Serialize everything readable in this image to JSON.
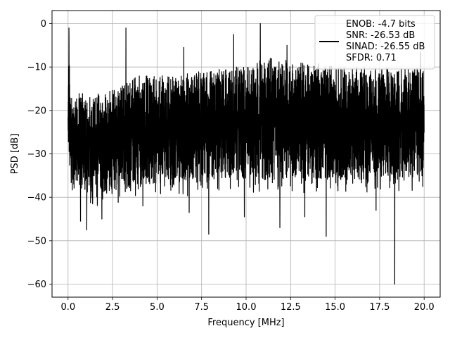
{
  "chart_data": {
    "type": "line",
    "xlabel": "Frequency [MHz]",
    "ylabel": "PSD [dB]",
    "xlim": [
      -0.9,
      20.9
    ],
    "ylim": [
      -63,
      3
    ],
    "xticks": [
      0.0,
      2.5,
      5.0,
      7.5,
      10.0,
      12.5,
      15.0,
      17.5,
      20.0
    ],
    "xtick_labels": [
      "0.0",
      "2.5",
      "5.0",
      "7.5",
      "10.0",
      "12.5",
      "15.0",
      "17.5",
      "20.0"
    ],
    "yticks": [
      0,
      -10,
      -20,
      -30,
      -40,
      -50,
      -60
    ],
    "ytick_labels": [
      "0",
      "−10",
      "−20",
      "−30",
      "−40",
      "−50",
      "−60"
    ],
    "grid": true,
    "legend_placement": "top-right",
    "legend": {
      "lines": [
        "ENOB: -4.7 bits",
        "SNR: -26.53 dB",
        "SINAD: -26.55 dB",
        "SFDR: 0.71"
      ]
    },
    "series_color": "#000000",
    "envelope": {
      "x": [
        0.0,
        0.05,
        0.1,
        0.3,
        0.6,
        1.0,
        1.5,
        2.0,
        2.5,
        3.0,
        3.5,
        4.0,
        5.0,
        6.0,
        7.0,
        8.0,
        9.0,
        10.0,
        11.0,
        12.0,
        13.0,
        14.0,
        15.0,
        16.0,
        17.0,
        18.0,
        19.0,
        20.0
      ],
      "upper": [
        -20,
        -1,
        -15,
        -16,
        -16,
        -16,
        -16,
        -15,
        -15,
        -14,
        -13,
        -12,
        -12,
        -12,
        -11,
        -11,
        -10,
        -10,
        -8,
        -8,
        -9,
        -9,
        -10,
        -10,
        -10,
        -10,
        -10,
        -10
      ],
      "lower": [
        -28,
        -30,
        -35,
        -37,
        -38,
        -39,
        -39,
        -39,
        -39,
        -38,
        -38,
        -37,
        -37,
        -37,
        -37,
        -36,
        -36,
        -36,
        -36,
        -36,
        -36,
        -36,
        -36,
        -36,
        -36,
        -36,
        -36,
        -36
      ]
    },
    "peaks": [
      {
        "x": 0.05,
        "y": -1.0
      },
      {
        "x": 3.25,
        "y": -1.0
      },
      {
        "x": 9.3,
        "y": -2.5
      },
      {
        "x": 10.8,
        "y": 0.0
      },
      {
        "x": 6.5,
        "y": -5.5
      },
      {
        "x": 12.3,
        "y": -5.0
      },
      {
        "x": 19.8,
        "y": -6.5
      }
    ],
    "dips": [
      {
        "x": 0.7,
        "y": -45.5
      },
      {
        "x": 1.05,
        "y": -47.5
      },
      {
        "x": 1.9,
        "y": -45.0
      },
      {
        "x": 4.2,
        "y": -42.0
      },
      {
        "x": 6.8,
        "y": -43.5
      },
      {
        "x": 7.9,
        "y": -48.5
      },
      {
        "x": 9.9,
        "y": -44.5
      },
      {
        "x": 11.9,
        "y": -47.0
      },
      {
        "x": 13.3,
        "y": -44.5
      },
      {
        "x": 14.5,
        "y": -49.0
      },
      {
        "x": 17.3,
        "y": -43.0
      },
      {
        "x": 18.35,
        "y": -60.0
      }
    ]
  }
}
